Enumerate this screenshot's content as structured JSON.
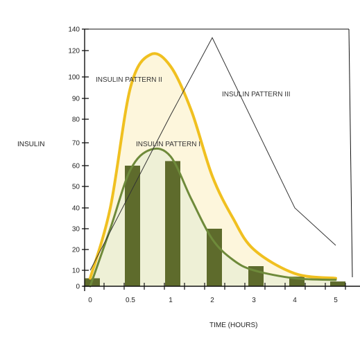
{
  "chart_data": {
    "type": "line",
    "title": "",
    "xlabel": "TIME (HOURS)",
    "ylabel": "INSULIN",
    "x_ticks": [
      "0",
      "0.5",
      "1",
      "2",
      "3",
      "4",
      "5"
    ],
    "y_ticks": [
      "0",
      "10",
      "20",
      "30",
      "40",
      "50",
      "60",
      "70",
      "80",
      "90",
      "100",
      "120",
      "140"
    ],
    "grid": false,
    "legend": "none",
    "annotations": [
      "INSULIN PATTERN I",
      "INSULIN PATTERN II",
      "INSULIN PATTERN III"
    ],
    "bars": {
      "color": "#5e6b2c",
      "x": [
        "0",
        "0.5",
        "1",
        "2",
        "3",
        "4",
        "5"
      ],
      "values": [
        5,
        60,
        62,
        30,
        12,
        6,
        3
      ]
    },
    "series": [
      {
        "name": "INSULIN PATTERN I",
        "color": "#6e8a3a",
        "fill": "#eef0d6",
        "x": [
          0,
          0.25,
          0.5,
          0.75,
          1,
          1.5,
          2,
          2.5,
          3,
          4,
          5
        ],
        "y": [
          0,
          30,
          58,
          67,
          64,
          44,
          25,
          15,
          10,
          5,
          4
        ]
      },
      {
        "name": "INSULIN PATTERN II",
        "color": "#f0c020",
        "fill": "#fdf6dc",
        "x": [
          0,
          0.25,
          0.5,
          0.75,
          1,
          1.5,
          2,
          2.5,
          3,
          4,
          5
        ],
        "y": [
          5,
          40,
          95,
          117,
          108,
          84,
          55,
          35,
          20,
          8,
          5
        ]
      },
      {
        "name": "INSULIN PATTERN III",
        "color": "#333333",
        "x": [
          0,
          1,
          2,
          4,
          5
        ],
        "y": [
          10,
          82,
          132,
          40,
          22
        ]
      }
    ]
  }
}
